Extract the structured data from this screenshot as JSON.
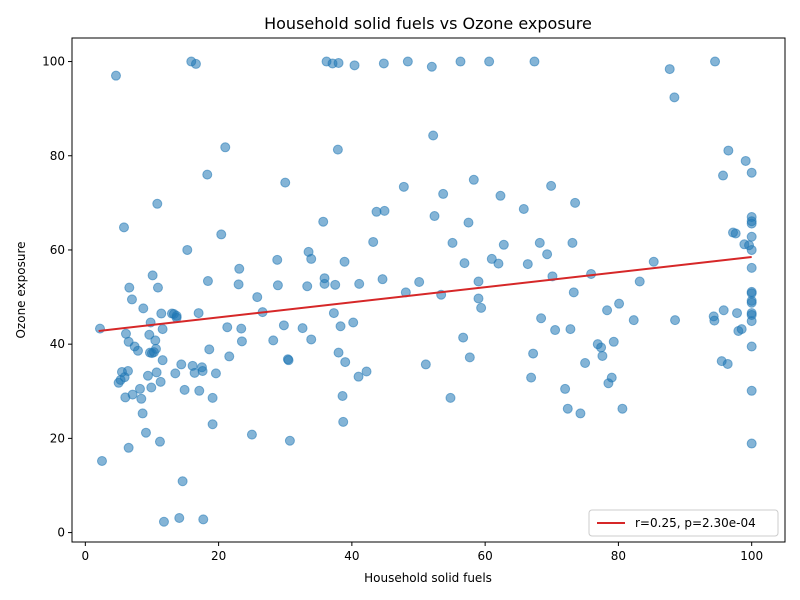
{
  "chart_data": {
    "type": "scatter",
    "title": "Household solid fuels vs Ozone exposure",
    "xlabel": "Household solid fuels",
    "ylabel": "Ozone exposure",
    "xlim": [
      -2,
      105
    ],
    "ylim": [
      -2,
      105
    ],
    "xticks": [
      0,
      20,
      40,
      60,
      80,
      100
    ],
    "yticks": [
      0,
      20,
      40,
      60,
      80,
      100
    ],
    "grid": false,
    "legend_position": "lower-right",
    "colors": {
      "points": "#1f77b4",
      "fit_line": "#d62728"
    },
    "fit_line": {
      "label": "r=0.25, p=2.30e-04",
      "x": [
        2,
        100
      ],
      "y": [
        42.8,
        58.5
      ]
    },
    "points": [
      [
        2.2,
        43.3
      ],
      [
        2.5,
        15.2
      ],
      [
        4.6,
        97.0
      ],
      [
        5.0,
        31.8
      ],
      [
        5.3,
        32.4
      ],
      [
        5.5,
        34.1
      ],
      [
        5.8,
        64.8
      ],
      [
        5.9,
        33.0
      ],
      [
        6.0,
        28.7
      ],
      [
        6.1,
        42.2
      ],
      [
        6.4,
        34.3
      ],
      [
        6.5,
        18.0
      ],
      [
        6.5,
        40.5
      ],
      [
        6.6,
        52.0
      ],
      [
        7.0,
        49.5
      ],
      [
        7.1,
        29.3
      ],
      [
        7.4,
        39.5
      ],
      [
        7.9,
        38.6
      ],
      [
        8.2,
        30.5
      ],
      [
        8.4,
        28.4
      ],
      [
        8.6,
        25.3
      ],
      [
        8.7,
        47.6
      ],
      [
        9.1,
        21.2
      ],
      [
        9.4,
        33.3
      ],
      [
        9.6,
        42.0
      ],
      [
        9.7,
        38.2
      ],
      [
        9.8,
        44.6
      ],
      [
        9.9,
        30.8
      ],
      [
        10.0,
        38.1
      ],
      [
        10.1,
        54.6
      ],
      [
        10.3,
        38.3
      ],
      [
        10.5,
        40.8
      ],
      [
        10.6,
        39.0
      ],
      [
        10.7,
        34.0
      ],
      [
        10.8,
        69.8
      ],
      [
        10.9,
        52.0
      ],
      [
        11.2,
        19.3
      ],
      [
        11.3,
        32.0
      ],
      [
        11.4,
        46.5
      ],
      [
        11.6,
        36.6
      ],
      [
        11.6,
        43.2
      ],
      [
        11.8,
        2.3
      ],
      [
        13.0,
        46.5
      ],
      [
        13.3,
        46.4
      ],
      [
        13.5,
        33.8
      ],
      [
        13.7,
        45.6
      ],
      [
        13.7,
        46.0
      ],
      [
        14.1,
        3.1
      ],
      [
        14.4,
        35.7
      ],
      [
        14.6,
        10.9
      ],
      [
        14.9,
        30.3
      ],
      [
        15.3,
        60.0
      ],
      [
        15.9,
        100.0
      ],
      [
        16.1,
        35.4
      ],
      [
        16.4,
        33.9
      ],
      [
        16.6,
        99.5
      ],
      [
        17.0,
        46.6
      ],
      [
        17.1,
        30.1
      ],
      [
        17.5,
        35.1
      ],
      [
        17.6,
        34.3
      ],
      [
        17.7,
        2.8
      ],
      [
        18.3,
        76.0
      ],
      [
        18.4,
        53.4
      ],
      [
        18.6,
        38.9
      ],
      [
        19.1,
        23.0
      ],
      [
        19.1,
        28.6
      ],
      [
        19.6,
        33.8
      ],
      [
        20.4,
        63.3
      ],
      [
        21.0,
        81.8
      ],
      [
        21.3,
        43.6
      ],
      [
        21.6,
        37.4
      ],
      [
        23.0,
        52.7
      ],
      [
        23.1,
        56.0
      ],
      [
        23.4,
        43.3
      ],
      [
        23.5,
        40.6
      ],
      [
        25.0,
        20.8
      ],
      [
        25.8,
        50.0
      ],
      [
        26.6,
        46.8
      ],
      [
        28.2,
        40.8
      ],
      [
        28.8,
        57.9
      ],
      [
        28.9,
        52.5
      ],
      [
        29.8,
        44.0
      ],
      [
        30.0,
        74.3
      ],
      [
        30.4,
        36.8
      ],
      [
        30.5,
        36.6
      ],
      [
        30.7,
        19.5
      ],
      [
        32.6,
        43.4
      ],
      [
        33.3,
        52.3
      ],
      [
        33.5,
        59.6
      ],
      [
        33.9,
        41.0
      ],
      [
        33.9,
        58.1
      ],
      [
        35.7,
        66.0
      ],
      [
        35.9,
        54.0
      ],
      [
        35.9,
        52.8
      ],
      [
        36.2,
        100.0
      ],
      [
        37.1,
        99.6
      ],
      [
        37.3,
        46.6
      ],
      [
        37.5,
        52.6
      ],
      [
        37.9,
        81.3
      ],
      [
        38.0,
        99.7
      ],
      [
        38.0,
        38.2
      ],
      [
        38.3,
        43.8
      ],
      [
        38.6,
        29.0
      ],
      [
        38.7,
        23.5
      ],
      [
        38.9,
        57.5
      ],
      [
        39.0,
        36.2
      ],
      [
        40.2,
        44.6
      ],
      [
        40.4,
        99.2
      ],
      [
        41.0,
        33.1
      ],
      [
        41.1,
        52.8
      ],
      [
        42.2,
        34.2
      ],
      [
        43.2,
        61.7
      ],
      [
        43.7,
        68.1
      ],
      [
        44.6,
        53.8
      ],
      [
        44.8,
        99.6
      ],
      [
        44.9,
        68.3
      ],
      [
        47.8,
        73.4
      ],
      [
        48.1,
        51.0
      ],
      [
        48.4,
        100.0
      ],
      [
        50.1,
        53.2
      ],
      [
        51.1,
        35.7
      ],
      [
        52.0,
        98.9
      ],
      [
        52.2,
        84.3
      ],
      [
        52.4,
        67.2
      ],
      [
        53.4,
        50.5
      ],
      [
        53.7,
        71.9
      ],
      [
        54.8,
        28.6
      ],
      [
        55.1,
        61.5
      ],
      [
        56.3,
        100.0
      ],
      [
        56.7,
        41.4
      ],
      [
        56.9,
        57.2
      ],
      [
        57.5,
        65.8
      ],
      [
        57.7,
        37.2
      ],
      [
        58.3,
        74.9
      ],
      [
        59.0,
        53.3
      ],
      [
        59.0,
        49.7
      ],
      [
        59.4,
        47.7
      ],
      [
        60.6,
        100.0
      ],
      [
        61.0,
        58.1
      ],
      [
        62.0,
        57.1
      ],
      [
        62.3,
        71.5
      ],
      [
        62.8,
        61.1
      ],
      [
        65.8,
        68.7
      ],
      [
        66.4,
        57.0
      ],
      [
        66.9,
        32.9
      ],
      [
        67.2,
        38.0
      ],
      [
        67.4,
        100.0
      ],
      [
        68.2,
        61.5
      ],
      [
        68.4,
        45.5
      ],
      [
        69.3,
        59.1
      ],
      [
        69.9,
        73.6
      ],
      [
        70.1,
        54.4
      ],
      [
        70.5,
        43.0
      ],
      [
        72.0,
        30.5
      ],
      [
        72.4,
        26.3
      ],
      [
        72.8,
        43.2
      ],
      [
        73.1,
        61.5
      ],
      [
        73.3,
        51.0
      ],
      [
        73.5,
        70.0
      ],
      [
        74.3,
        25.3
      ],
      [
        75.0,
        36.0
      ],
      [
        75.9,
        54.9
      ],
      [
        76.9,
        40.0
      ],
      [
        77.4,
        39.3
      ],
      [
        77.6,
        37.5
      ],
      [
        78.3,
        47.2
      ],
      [
        78.5,
        31.7
      ],
      [
        79.0,
        32.9
      ],
      [
        79.3,
        40.5
      ],
      [
        80.1,
        48.6
      ],
      [
        80.6,
        26.3
      ],
      [
        82.3,
        45.1
      ],
      [
        83.2,
        53.3
      ],
      [
        85.3,
        57.5
      ],
      [
        87.7,
        98.4
      ],
      [
        88.4,
        92.4
      ],
      [
        88.5,
        45.1
      ],
      [
        94.3,
        45.9
      ],
      [
        94.4,
        45.0
      ],
      [
        94.5,
        100.0
      ],
      [
        95.5,
        36.4
      ],
      [
        95.7,
        75.8
      ],
      [
        95.8,
        47.2
      ],
      [
        96.4,
        35.8
      ],
      [
        96.5,
        81.1
      ],
      [
        97.2,
        63.7
      ],
      [
        97.6,
        63.5
      ],
      [
        97.8,
        46.6
      ],
      [
        98.0,
        42.8
      ],
      [
        98.5,
        43.2
      ],
      [
        98.9,
        61.2
      ],
      [
        99.1,
        78.9
      ],
      [
        99.6,
        61.0
      ],
      [
        100.0,
        76.4
      ],
      [
        100.0,
        67.0
      ],
      [
        100.0,
        66.1
      ],
      [
        100.0,
        65.6
      ],
      [
        100.0,
        62.8
      ],
      [
        100.0,
        60.0
      ],
      [
        100.0,
        56.2
      ],
      [
        100.0,
        51.1
      ],
      [
        100.0,
        50.8
      ],
      [
        100.0,
        49.2
      ],
      [
        100.0,
        48.8
      ],
      [
        100.0,
        46.6
      ],
      [
        100.0,
        46.2
      ],
      [
        100.0,
        44.9
      ],
      [
        100.0,
        39.5
      ],
      [
        100.0,
        30.1
      ],
      [
        100.0,
        18.9
      ]
    ]
  }
}
